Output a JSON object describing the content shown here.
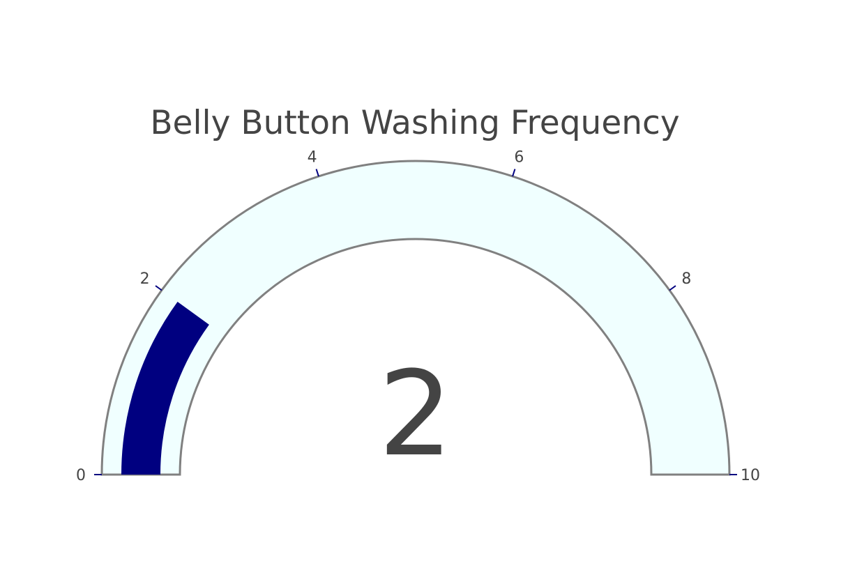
{
  "chart_data": {
    "type": "gauge",
    "title": "Belly Button Washing Frequency",
    "value": 2,
    "value_label": "2",
    "range": [
      0,
      10
    ],
    "ticks": [
      0,
      2,
      4,
      6,
      8,
      10
    ],
    "tick_labels": [
      "0",
      "2",
      "4",
      "6",
      "8",
      "10"
    ],
    "colors": {
      "bar": "#000080",
      "background": "#f0ffff",
      "border": "#808080",
      "tick": "#000080",
      "text": "#444444"
    }
  }
}
